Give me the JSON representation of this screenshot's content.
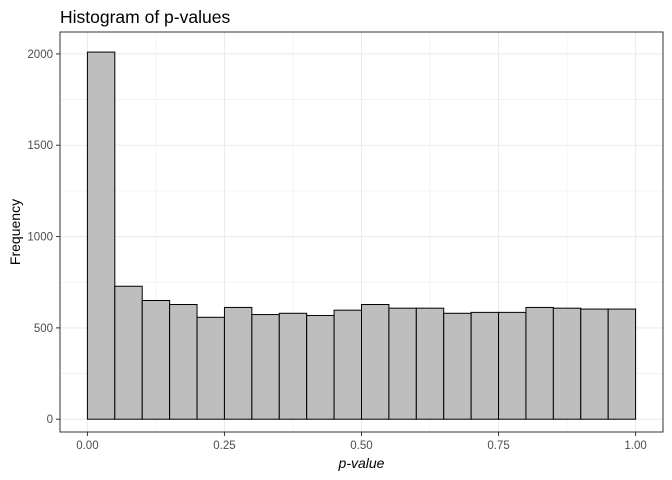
{
  "chart_data": {
    "type": "bar",
    "title": "Histogram of p-values",
    "xlabel": "p-value",
    "ylabel": "Frequency",
    "xlim": [
      -0.05,
      1.05
    ],
    "ylim": [
      -70,
      2120
    ],
    "x_ticks": [
      0.0,
      0.25,
      0.5,
      0.75,
      1.0
    ],
    "x_tick_labels": [
      "0.00",
      "0.25",
      "0.50",
      "0.75",
      "1.00"
    ],
    "y_ticks": [
      0,
      500,
      1000,
      1500,
      2000
    ],
    "y_tick_labels": [
      "0",
      "500",
      "1000",
      "1500",
      "2000"
    ],
    "bin_width": 0.05,
    "bins": [
      {
        "x_start": 0.0,
        "x_end": 0.05,
        "count": 2010
      },
      {
        "x_start": 0.05,
        "x_end": 0.1,
        "count": 728
      },
      {
        "x_start": 0.1,
        "x_end": 0.15,
        "count": 650
      },
      {
        "x_start": 0.15,
        "x_end": 0.2,
        "count": 628
      },
      {
        "x_start": 0.2,
        "x_end": 0.25,
        "count": 558
      },
      {
        "x_start": 0.25,
        "x_end": 0.3,
        "count": 612
      },
      {
        "x_start": 0.3,
        "x_end": 0.35,
        "count": 573
      },
      {
        "x_start": 0.35,
        "x_end": 0.4,
        "count": 580
      },
      {
        "x_start": 0.4,
        "x_end": 0.45,
        "count": 568
      },
      {
        "x_start": 0.45,
        "x_end": 0.5,
        "count": 597
      },
      {
        "x_start": 0.5,
        "x_end": 0.55,
        "count": 628
      },
      {
        "x_start": 0.55,
        "x_end": 0.6,
        "count": 608
      },
      {
        "x_start": 0.6,
        "x_end": 0.65,
        "count": 608
      },
      {
        "x_start": 0.65,
        "x_end": 0.7,
        "count": 580
      },
      {
        "x_start": 0.7,
        "x_end": 0.75,
        "count": 585
      },
      {
        "x_start": 0.75,
        "x_end": 0.8,
        "count": 585
      },
      {
        "x_start": 0.8,
        "x_end": 0.85,
        "count": 612
      },
      {
        "x_start": 0.85,
        "x_end": 0.9,
        "count": 608
      },
      {
        "x_start": 0.9,
        "x_end": 0.95,
        "count": 603
      },
      {
        "x_start": 0.95,
        "x_end": 1.0,
        "count": 603
      }
    ],
    "grid": true,
    "bar_fill": "#bebebe",
    "bar_stroke": "#000000",
    "grid_color": "#ebebeb",
    "panel_border_color": "#333333"
  }
}
